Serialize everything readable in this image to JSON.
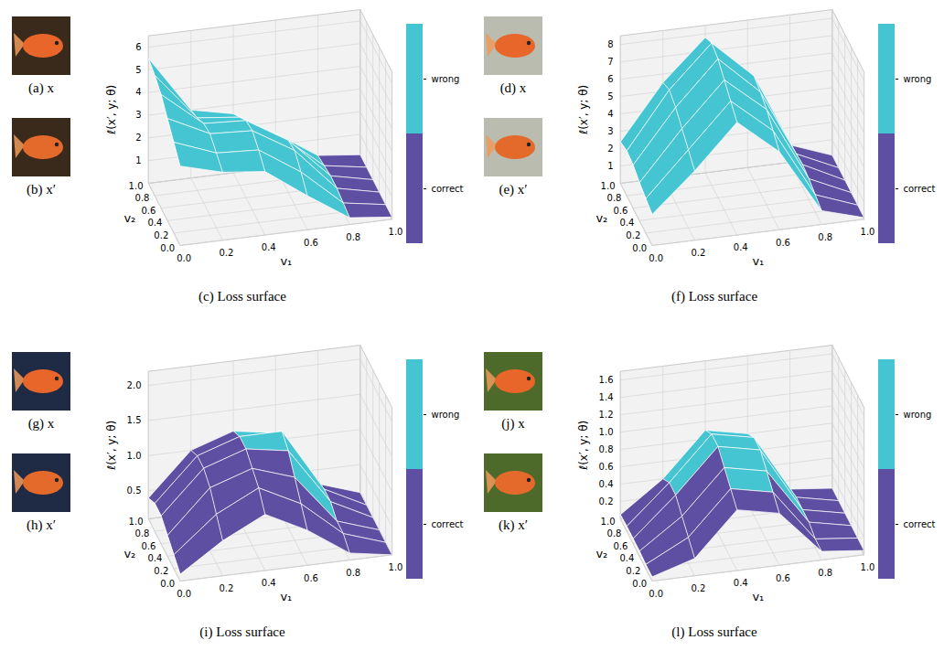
{
  "chart_data": [
    {
      "type": "surface",
      "caption": "(c) Loss surface",
      "images": [
        "(a) x",
        "(b) x′"
      ],
      "xlabel": "v₁",
      "ylabel": "v₂",
      "zlabel": "ℓ(x′, y; θ)",
      "x": [
        0,
        0.2,
        0.4,
        0.6,
        0.8,
        1.0
      ],
      "y": [
        0,
        0.2,
        0.4,
        0.6,
        0.8,
        1.0
      ],
      "xlim": [
        0,
        1
      ],
      "ylim": [
        0,
        1
      ],
      "zlim": [
        0,
        6.5
      ],
      "xticks": [
        {
          "value": 0,
          "label": "0.0"
        },
        0.2,
        0.4,
        0.6,
        0.8,
        {
          "value": 1,
          "label": "1.0"
        }
      ],
      "yticks": [
        {
          "value": 0,
          "label": "0.0"
        },
        0.2,
        0.4,
        0.6,
        0.8,
        {
          "value": 1,
          "label": "1.0"
        }
      ],
      "zticks": [
        1,
        2,
        3,
        4,
        5,
        6
      ],
      "z": [
        [
          3.5,
          4.0,
          4.5,
          5.0,
          5.3,
          5.5
        ],
        [
          3.0,
          3.3,
          3.6,
          3.5,
          3.2,
          3.0
        ],
        [
          2.8,
          3.2,
          3.5,
          3.4,
          3.0,
          2.6
        ],
        [
          1.5,
          2.0,
          2.4,
          2.3,
          1.9,
          1.5
        ],
        [
          0.3,
          0.4,
          0.5,
          0.5,
          0.4,
          0.3
        ],
        [
          0.1,
          0.1,
          0.1,
          0.1,
          0.1,
          0.1
        ]
      ],
      "cell_classes": [
        [
          "wrong",
          "wrong",
          "wrong",
          "wrong",
          "wrong"
        ],
        [
          "wrong",
          "wrong",
          "wrong",
          "wrong",
          "wrong"
        ],
        [
          "wrong",
          "wrong",
          "wrong",
          "wrong",
          "wrong"
        ],
        [
          "wrong",
          "wrong",
          "wrong",
          "wrong",
          "wrong"
        ],
        [
          "correct",
          "correct",
          "correct",
          "correct",
          "correct"
        ]
      ],
      "colorbar": {
        "labels": [
          "wrong",
          "correct"
        ],
        "colors": [
          "#45c4d2",
          "#5e4fa2"
        ]
      }
    },
    {
      "type": "surface",
      "caption": "(f) Loss surface",
      "images": [
        "(d) x",
        "(e) x′"
      ],
      "xlabel": "v₁",
      "ylabel": "v₂",
      "zlabel": "ℓ(x′, y; θ)",
      "x": [
        0,
        0.2,
        0.4,
        0.6,
        0.8,
        1.0
      ],
      "y": [
        0,
        0.2,
        0.4,
        0.6,
        0.8,
        1.0
      ],
      "xlim": [
        0,
        1
      ],
      "ylim": [
        0,
        1
      ],
      "zlim": [
        0,
        8.5
      ],
      "xticks": [
        {
          "value": 0,
          "label": "0.0"
        },
        0.2,
        0.4,
        0.6,
        0.8,
        {
          "value": 1,
          "label": "1.0"
        }
      ],
      "yticks": [
        {
          "value": 0,
          "label": "0.0"
        },
        0.2,
        0.4,
        0.6,
        0.8,
        {
          "value": 1,
          "label": "1.0"
        }
      ],
      "zticks": [
        1,
        2,
        3,
        4,
        5,
        6,
        7,
        8
      ],
      "z": [
        [
          1.8,
          2.0,
          2.2,
          2.5,
          2.6,
          2.4
        ],
        [
          4.0,
          4.5,
          5.0,
          5.5,
          5.8,
          5.5
        ],
        [
          6.5,
          7.0,
          7.5,
          8.0,
          8.2,
          7.8
        ],
        [
          4.5,
          5.0,
          5.5,
          5.8,
          6.0,
          5.5
        ],
        [
          0.8,
          1.0,
          1.2,
          1.3,
          1.2,
          1.0
        ],
        [
          0.1,
          0.1,
          0.1,
          0.1,
          0.1,
          0.1
        ]
      ],
      "cell_classes": [
        [
          "wrong",
          "wrong",
          "wrong",
          "wrong",
          "wrong"
        ],
        [
          "wrong",
          "wrong",
          "wrong",
          "wrong",
          "wrong"
        ],
        [
          "wrong",
          "wrong",
          "wrong",
          "wrong",
          "wrong"
        ],
        [
          "wrong",
          "wrong",
          "wrong",
          "wrong",
          "wrong"
        ],
        [
          "correct",
          "correct",
          "correct",
          "correct",
          "correct"
        ]
      ],
      "colorbar": {
        "labels": [
          "wrong",
          "correct"
        ],
        "colors": [
          "#45c4d2",
          "#5e4fa2"
        ]
      }
    },
    {
      "type": "surface",
      "caption": "(i) Loss surface",
      "images": [
        "(g) x",
        "(h) x′"
      ],
      "xlabel": "v₁",
      "ylabel": "v₂",
      "zlabel": "ℓ(x′, y; θ)",
      "x": [
        0,
        0.2,
        0.4,
        0.6,
        0.8,
        1.0
      ],
      "y": [
        0,
        0.2,
        0.4,
        0.6,
        0.8,
        1.0
      ],
      "xlim": [
        0,
        1
      ],
      "ylim": [
        0,
        1
      ],
      "zlim": [
        0.1,
        2.2
      ],
      "xticks": [
        {
          "value": 0,
          "label": "0.0"
        },
        0.2,
        0.4,
        0.6,
        0.8,
        {
          "value": 1,
          "label": "1.0"
        }
      ],
      "yticks": [
        {
          "value": 0,
          "label": "0.0"
        },
        0.2,
        0.4,
        0.6,
        0.8,
        {
          "value": 1,
          "label": "1.0"
        }
      ],
      "zticks": [
        0.5,
        {
          "value": 1,
          "label": "1.0"
        },
        1.5,
        {
          "value": 2,
          "label": "2.0"
        }
      ],
      "z": [
        [
          0.2,
          0.3,
          0.4,
          0.5,
          0.5,
          0.4
        ],
        [
          0.6,
          0.8,
          1.0,
          1.1,
          1.1,
          1.0
        ],
        [
          0.9,
          1.1,
          1.2,
          1.3,
          1.3,
          1.2
        ],
        [
          0.6,
          0.8,
          1.0,
          1.2,
          1.3,
          1.1
        ],
        [
          0.2,
          0.3,
          0.3,
          0.4,
          0.4,
          0.3
        ],
        [
          0.1,
          0.1,
          0.1,
          0.1,
          0.1,
          0.1
        ]
      ],
      "cell_classes": [
        [
          "correct",
          "correct",
          "correct",
          "correct",
          "correct"
        ],
        [
          "correct",
          "correct",
          "correct",
          "correct",
          "correct"
        ],
        [
          "correct",
          "correct",
          "correct",
          "wrong",
          "wrong"
        ],
        [
          "correct",
          "correct",
          "wrong",
          "wrong",
          "wrong"
        ],
        [
          "correct",
          "correct",
          "correct",
          "correct",
          "correct"
        ]
      ],
      "colorbar": {
        "labels": [
          "wrong",
          "correct"
        ],
        "colors": [
          "#45c4d2",
          "#5e4fa2"
        ]
      }
    },
    {
      "type": "surface",
      "caption": "(l) Loss surface",
      "images": [
        "(j) x",
        "(k) x′"
      ],
      "xlabel": "v₁",
      "ylabel": "v₂",
      "zlabel": "ℓ(x′, y; θ)",
      "x": [
        0,
        0.2,
        0.4,
        0.6,
        0.8,
        1.0
      ],
      "y": [
        0,
        0.2,
        0.4,
        0.6,
        0.8,
        1.0
      ],
      "xlim": [
        0,
        1
      ],
      "ylim": [
        0,
        1
      ],
      "zlim": [
        0,
        1.7
      ],
      "xticks": [
        {
          "value": 0,
          "label": "0.0"
        },
        0.2,
        0.4,
        0.6,
        0.8,
        {
          "value": 1,
          "label": "1.0"
        }
      ],
      "yticks": [
        {
          "value": 0,
          "label": "0.0"
        },
        0.2,
        0.4,
        0.6,
        0.8,
        {
          "value": 1,
          "label": "1.0"
        }
      ],
      "zticks": [
        0.2,
        0.4,
        0.6,
        0.8,
        {
          "value": 1,
          "label": "1.0"
        },
        1.2,
        1.4,
        1.6
      ],
      "z": [
        [
          0.05,
          0.05,
          0.06,
          0.06,
          0.06,
          0.05
        ],
        [
          0.2,
          0.3,
          0.4,
          0.5,
          0.5,
          0.4
        ],
        [
          0.7,
          0.8,
          0.9,
          1.0,
          1.0,
          0.9
        ],
        [
          0.6,
          0.7,
          0.8,
          0.9,
          0.9,
          0.8
        ],
        [
          0.1,
          0.1,
          0.15,
          0.15,
          0.15,
          0.1
        ],
        [
          0.05,
          0.05,
          0.05,
          0.05,
          0.05,
          0.05
        ]
      ],
      "cell_classes": [
        [
          "correct",
          "correct",
          "correct",
          "correct",
          "correct"
        ],
        [
          "correct",
          "correct",
          "correct",
          "wrong",
          "wrong"
        ],
        [
          "correct",
          "wrong",
          "wrong",
          "wrong",
          "wrong"
        ],
        [
          "correct",
          "correct",
          "wrong",
          "wrong",
          "wrong"
        ],
        [
          "correct",
          "correct",
          "correct",
          "correct",
          "correct"
        ]
      ],
      "colorbar": {
        "labels": [
          "wrong",
          "correct"
        ],
        "colors": [
          "#45c4d2",
          "#5e4fa2"
        ]
      }
    }
  ]
}
